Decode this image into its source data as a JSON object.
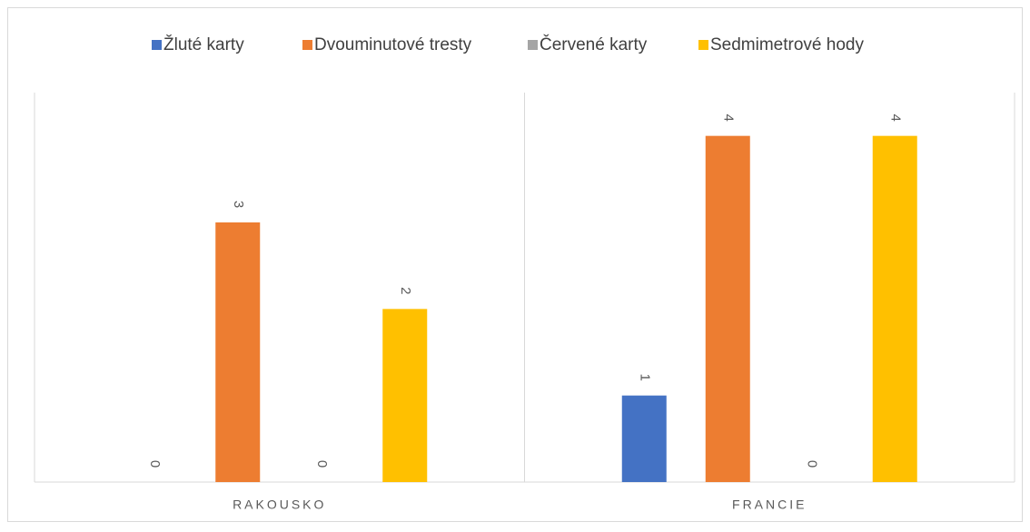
{
  "chart_data": {
    "type": "bar",
    "categories": [
      "RAKOUSKO",
      "FRANCIE"
    ],
    "series": [
      {
        "name": "Žluté karty",
        "color": "#4472c4",
        "values": [
          0,
          1
        ]
      },
      {
        "name": "Dvouminutové tresty",
        "color": "#ed7d31",
        "values": [
          3,
          4
        ]
      },
      {
        "name": "Červené karty",
        "color": "#a5a5a5",
        "values": [
          0,
          0
        ]
      },
      {
        "name": "Sedmimetrové hody",
        "color": "#ffc000",
        "values": [
          2,
          4
        ]
      }
    ],
    "ylim": [
      0,
      4.5
    ],
    "legend": "top",
    "data_labels": true
  }
}
